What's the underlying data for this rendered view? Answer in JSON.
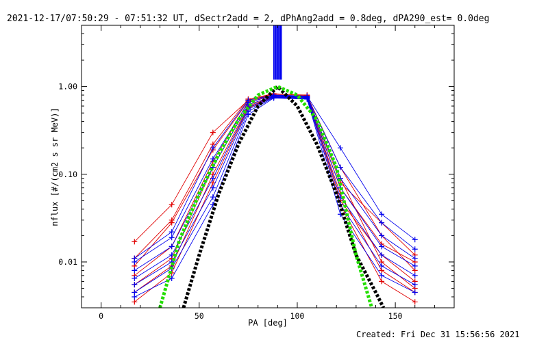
{
  "chart_data": {
    "type": "line",
    "title": "2021-12-17/07:50:29 - 07:51:32 UT, dSectr2add = 2, dPhAng2add = 0.8deg, dPA290_est=  0.0deg",
    "xlabel": "PA [deg]",
    "ylabel": "nflux [#/(cm2 s sr MeV)]",
    "footer": "Created: Fri Dec 31 15:56:56 2021",
    "xlim": [
      -10,
      180
    ],
    "ylim": [
      0.003,
      5
    ],
    "yscale": "log",
    "x_ticks": [
      0,
      50,
      100,
      150
    ],
    "x_tick_labels": [
      "0",
      "50",
      "100",
      "150"
    ],
    "y_ticks": [
      0.01,
      0.1,
      1.0
    ],
    "y_tick_labels": [
      "0.01",
      "0.10",
      "1.00"
    ],
    "grid": false,
    "colors": {
      "red": "#e00000",
      "blue": "#0000ee",
      "black": "#000000",
      "green": "#22dd00"
    },
    "series": [
      {
        "color": "red",
        "marker": "+",
        "x": [
          17,
          36,
          57,
          75,
          88,
          105,
          122,
          143,
          160
        ],
        "y": [
          0.017,
          0.045,
          0.3,
          0.7,
          0.82,
          0.8,
          0.08,
          0.028,
          0.012
        ]
      },
      {
        "color": "red",
        "marker": "+",
        "x": [
          17,
          36,
          57,
          75,
          88,
          105,
          122,
          143,
          160
        ],
        "y": [
          0.011,
          0.03,
          0.22,
          0.72,
          0.83,
          0.79,
          0.12,
          0.02,
          0.008
        ]
      },
      {
        "color": "red",
        "marker": "+",
        "x": [
          17,
          36,
          57,
          75,
          88,
          105,
          122,
          143,
          160
        ],
        "y": [
          0.009,
          0.028,
          0.19,
          0.68,
          0.8,
          0.78,
          0.07,
          0.016,
          0.01
        ]
      },
      {
        "color": "red",
        "marker": "+",
        "x": [
          17,
          36,
          57,
          75,
          88,
          105,
          122,
          143,
          160
        ],
        "y": [
          0.007,
          0.015,
          0.14,
          0.66,
          0.79,
          0.77,
          0.05,
          0.012,
          0.006
        ]
      },
      {
        "color": "red",
        "marker": "+",
        "x": [
          17,
          36,
          57,
          75,
          88,
          105,
          122,
          143,
          160
        ],
        "y": [
          0.0055,
          0.011,
          0.12,
          0.62,
          0.78,
          0.76,
          0.09,
          0.01,
          0.005
        ]
      },
      {
        "color": "red",
        "marker": "+",
        "x": [
          17,
          36,
          57,
          75,
          88,
          105,
          122,
          143,
          160
        ],
        "y": [
          0.0045,
          0.009,
          0.1,
          0.6,
          0.77,
          0.75,
          0.06,
          0.008,
          0.0045
        ]
      },
      {
        "color": "red",
        "marker": "+",
        "x": [
          17,
          36,
          57,
          75,
          88,
          105,
          122,
          143,
          160
        ],
        "y": [
          0.0035,
          0.0075,
          0.08,
          0.57,
          0.76,
          0.74,
          0.045,
          0.006,
          0.0035
        ]
      },
      {
        "color": "blue",
        "marker": "+",
        "x": [
          17,
          36,
          57,
          75,
          88,
          105,
          122,
          143,
          160
        ],
        "y": [
          0.011,
          0.022,
          0.2,
          0.7,
          0.8,
          0.78,
          0.2,
          0.035,
          0.018
        ]
      },
      {
        "color": "blue",
        "marker": "+",
        "x": [
          17,
          36,
          57,
          75,
          88,
          105,
          122,
          143,
          160
        ],
        "y": [
          0.01,
          0.019,
          0.15,
          0.66,
          0.79,
          0.77,
          0.12,
          0.028,
          0.014
        ]
      },
      {
        "color": "blue",
        "marker": "+",
        "x": [
          17,
          36,
          57,
          75,
          88,
          105,
          122,
          143,
          160
        ],
        "y": [
          0.008,
          0.015,
          0.12,
          0.62,
          0.78,
          0.76,
          0.09,
          0.02,
          0.011
        ]
      },
      {
        "color": "blue",
        "marker": "+",
        "x": [
          17,
          36,
          57,
          75,
          88,
          105,
          122,
          143,
          160
        ],
        "y": [
          0.0065,
          0.012,
          0.09,
          0.58,
          0.77,
          0.75,
          0.07,
          0.015,
          0.009
        ]
      },
      {
        "color": "blue",
        "marker": "+",
        "x": [
          17,
          36,
          57,
          75,
          88,
          105,
          122,
          143,
          160
        ],
        "y": [
          0.0055,
          0.01,
          0.07,
          0.55,
          0.76,
          0.74,
          0.055,
          0.012,
          0.007
        ]
      },
      {
        "color": "blue",
        "marker": "+",
        "x": [
          17,
          36,
          57,
          75,
          88,
          105,
          122,
          143,
          160
        ],
        "y": [
          0.0045,
          0.0085,
          0.055,
          0.52,
          0.75,
          0.73,
          0.045,
          0.009,
          0.0055
        ]
      },
      {
        "color": "blue",
        "marker": "+",
        "x": [
          17,
          36,
          57,
          75,
          88,
          105,
          122,
          143,
          160
        ],
        "y": [
          0.004,
          0.0065,
          0.045,
          0.48,
          0.74,
          0.72,
          0.035,
          0.007,
          0.0045
        ]
      }
    ],
    "fits": [
      {
        "name": "",
        "color": "black",
        "style": "dotted",
        "x": [
          42,
          50,
          60,
          70,
          80,
          90,
          100,
          110,
          120,
          130,
          140,
          144
        ],
        "y": [
          0.003,
          0.012,
          0.06,
          0.22,
          0.6,
          1.0,
          0.6,
          0.22,
          0.06,
          0.012,
          0.0045,
          0.003
        ]
      },
      {
        "name": "",
        "color": "green",
        "style": "dotted",
        "x": [
          30,
          40,
          50,
          60,
          70,
          80,
          90,
          100,
          110,
          120,
          130,
          138
        ],
        "y": [
          0.003,
          0.018,
          0.06,
          0.17,
          0.42,
          0.8,
          1.0,
          0.8,
          0.42,
          0.12,
          0.012,
          0.003
        ]
      }
    ],
    "spike": {
      "color": "blue",
      "x": [
        88,
        92
      ],
      "y": [
        1.2,
        5
      ]
    }
  }
}
